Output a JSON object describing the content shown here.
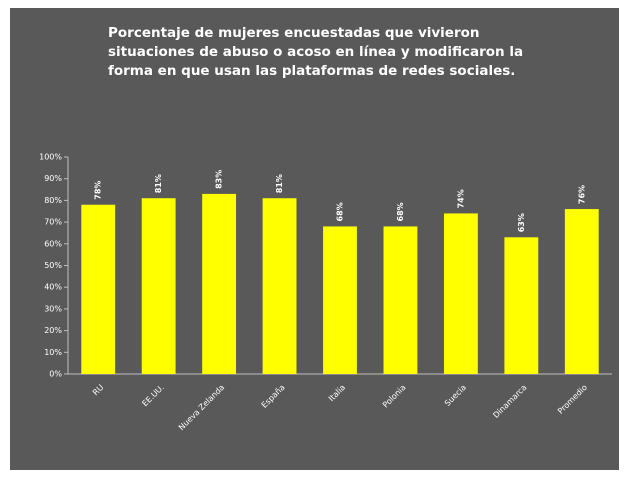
{
  "chart_data": {
    "type": "bar",
    "title": "Porcentaje de mujeres encuestadas que vivieron situaciones de abuso o acoso en línea y modificaron la forma en que usan las plataformas de redes sociales.",
    "categories": [
      "RU",
      "EE.UU.",
      "Nueva Zelanda",
      "España",
      "Italia",
      "Polonia",
      "Suecia",
      "Dinamarca",
      "Promedio"
    ],
    "values": [
      78,
      81,
      83,
      81,
      68,
      68,
      74,
      63,
      76
    ],
    "value_labels": [
      "78%",
      "81%",
      "83%",
      "81%",
      "68%",
      "68%",
      "74%",
      "63%",
      "76%"
    ],
    "color": "#ffff00",
    "ylim": [
      0,
      100
    ],
    "yticks": [
      {
        "value": 0,
        "label": "0%"
      },
      {
        "value": 10,
        "label": "10%"
      },
      {
        "value": 20,
        "label": "20%"
      },
      {
        "value": 30,
        "label": "30%"
      },
      {
        "value": 40,
        "label": "40%"
      },
      {
        "value": 50,
        "label": "50%"
      },
      {
        "value": 60,
        "label": "60%"
      },
      {
        "value": 70,
        "label": "70%"
      },
      {
        "value": 80,
        "label": "80%"
      },
      {
        "value": 90,
        "label": "90%"
      },
      {
        "value": 100,
        "label": "100%"
      }
    ]
  }
}
